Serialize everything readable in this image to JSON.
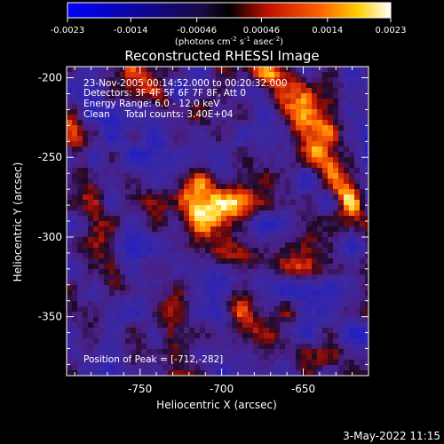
{
  "title": "Reconstructed RHESSI Image",
  "colorbar": {
    "ticks": [
      "-0.0023",
      "-0.0014",
      "-0.00046",
      "0.00046",
      "0.0014",
      "0.0023"
    ],
    "tick_values": [
      -0.0023,
      -0.0014,
      -0.00046,
      0.00046,
      0.0014,
      0.0023
    ],
    "range": [
      -0.0023,
      0.0023
    ],
    "units_prefix": "(photons cm",
    "units_exp1": "-2",
    "units_mid": " s",
    "units_exp2": "-1",
    "units_mid2": " asec",
    "units_exp3": "-2",
    "units_suffix": ")",
    "colors": [
      "#0000ff",
      "#000000",
      "#ff0000",
      "#ffff00",
      "#ffffff"
    ]
  },
  "axes": {
    "xlabel": "Heliocentric X (arcsec)",
    "ylabel": "Heliocentric Y (arcsec)",
    "xticks": [
      "-750",
      "-700",
      "-650"
    ],
    "xtick_values": [
      -750,
      -700,
      -650
    ],
    "yticks": [
      "-200",
      "-250",
      "-300",
      "-350"
    ],
    "ytick_values": [
      -200,
      -250,
      -300,
      -350
    ],
    "xlim": [
      -795,
      -610
    ],
    "ylim": [
      -387,
      -193
    ]
  },
  "info": {
    "line1": "23-Nov-2005 00:14:52.000 to 00:20:32.000",
    "line2": "Detectors: 3F 4F 5F 6F 7F 8F, Att 0",
    "line3": "Energy Range: 6.0 - 12.0 keV",
    "line4": "Clean     Total counts: 3.40E+04"
  },
  "peak_text": "Position of Peak = [-712,-282]",
  "timestamp": "3-May-2022 11:15"
}
